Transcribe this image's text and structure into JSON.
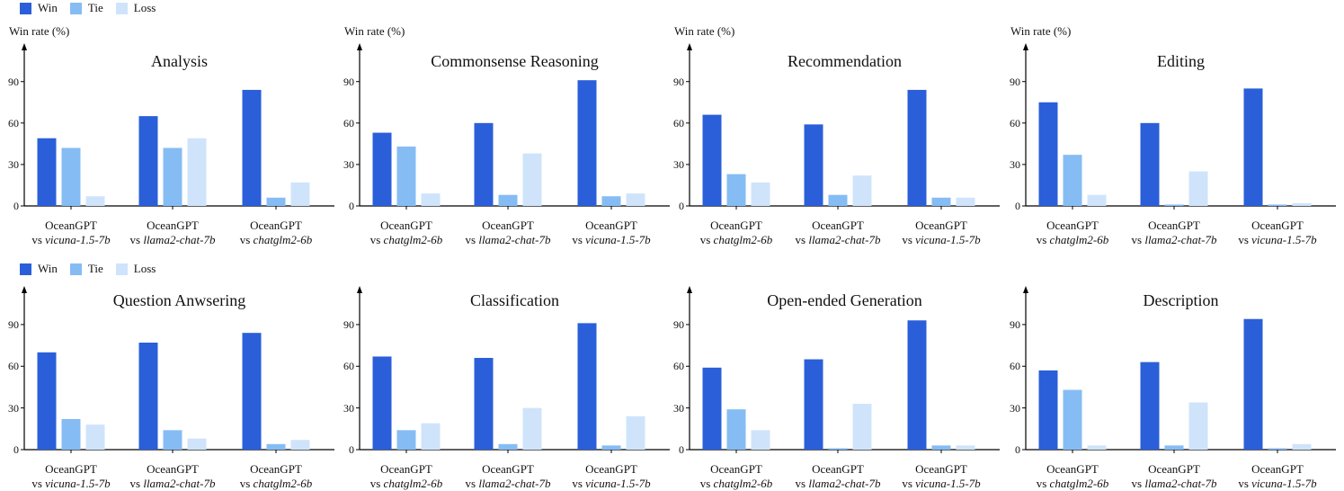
{
  "legend": [
    {
      "name": "Win",
      "color": "#2b5fd9"
    },
    {
      "name": "Tie",
      "color": "#86bcf4"
    },
    {
      "name": "Loss",
      "color": "#cfe4fb"
    }
  ],
  "ylabel": "Win rate (%)",
  "model_name": "OceanGPT",
  "vs_prefix": "vs",
  "chart_data": [
    {
      "type": "bar",
      "title": "Analysis",
      "ylabel": "Win rate (%)",
      "ylim": [
        0,
        110
      ],
      "yticks": [
        0,
        30,
        60,
        90
      ],
      "categories": [
        "vicuna-1.5-7b",
        "llama2-chat-7b",
        "chatglm2-6b"
      ],
      "series": [
        {
          "name": "Win",
          "values": [
            49,
            65,
            84
          ]
        },
        {
          "name": "Tie",
          "values": [
            42,
            42,
            6
          ]
        },
        {
          "name": "Loss",
          "values": [
            7,
            49,
            17
          ]
        }
      ]
    },
    {
      "type": "bar",
      "title": "Commonsense Reasoning",
      "ylabel": "Win rate (%)",
      "ylim": [
        0,
        110
      ],
      "yticks": [
        0,
        30,
        60,
        90
      ],
      "categories": [
        "chatglm2-6b",
        "llama2-chat-7b",
        "vicuna-1.5-7b"
      ],
      "series": [
        {
          "name": "Win",
          "values": [
            53,
            60,
            91
          ]
        },
        {
          "name": "Tie",
          "values": [
            43,
            8,
            7
          ]
        },
        {
          "name": "Loss",
          "values": [
            9,
            38,
            9
          ]
        }
      ]
    },
    {
      "type": "bar",
      "title": "Recommendation",
      "ylabel": "Win rate (%)",
      "ylim": [
        0,
        110
      ],
      "yticks": [
        0,
        30,
        60,
        90
      ],
      "categories": [
        "chatglm2-6b",
        "llama2-chat-7b",
        "vicuna-1.5-7b"
      ],
      "series": [
        {
          "name": "Win",
          "values": [
            66,
            59,
            84
          ]
        },
        {
          "name": "Tie",
          "values": [
            23,
            8,
            6
          ]
        },
        {
          "name": "Loss",
          "values": [
            17,
            22,
            6
          ]
        }
      ]
    },
    {
      "type": "bar",
      "title": "Editing",
      "ylabel": "Win rate (%)",
      "ylim": [
        0,
        110
      ],
      "yticks": [
        0,
        30,
        60,
        90
      ],
      "categories": [
        "chatglm2-6b",
        "llama2-chat-7b",
        "vicuna-1.5-7b"
      ],
      "series": [
        {
          "name": "Win",
          "values": [
            75,
            60,
            85
          ]
        },
        {
          "name": "Tie",
          "values": [
            37,
            1,
            1
          ]
        },
        {
          "name": "Loss",
          "values": [
            8,
            25,
            2
          ]
        }
      ]
    },
    {
      "type": "bar",
      "title": "Question Anwsering",
      "ylabel": "Win rate (%)",
      "ylim": [
        0,
        110
      ],
      "yticks": [
        0,
        30,
        60,
        90
      ],
      "categories": [
        "vicuna-1.5-7b",
        "llama2-chat-7b",
        "chatglm2-6b"
      ],
      "series": [
        {
          "name": "Win",
          "values": [
            70,
            77,
            84
          ]
        },
        {
          "name": "Tie",
          "values": [
            22,
            14,
            4
          ]
        },
        {
          "name": "Loss",
          "values": [
            18,
            8,
            7
          ]
        }
      ]
    },
    {
      "type": "bar",
      "title": "Classification",
      "ylabel": "Win rate (%)",
      "ylim": [
        0,
        110
      ],
      "yticks": [
        0,
        30,
        60,
        90
      ],
      "categories": [
        "chatglm2-6b",
        "llama2-chat-7b",
        "vicuna-1.5-7b"
      ],
      "series": [
        {
          "name": "Win",
          "values": [
            67,
            66,
            91
          ]
        },
        {
          "name": "Tie",
          "values": [
            14,
            4,
            3
          ]
        },
        {
          "name": "Loss",
          "values": [
            19,
            30,
            24
          ]
        }
      ]
    },
    {
      "type": "bar",
      "title": "Open-ended Generation",
      "ylabel": "Win rate (%)",
      "ylim": [
        0,
        110
      ],
      "yticks": [
        0,
        30,
        60,
        90
      ],
      "categories": [
        "chatglm2-6b",
        "llama2-chat-7b",
        "vicuna-1.5-7b"
      ],
      "series": [
        {
          "name": "Win",
          "values": [
            59,
            65,
            93
          ]
        },
        {
          "name": "Tie",
          "values": [
            29,
            1,
            3
          ]
        },
        {
          "name": "Loss",
          "values": [
            14,
            33,
            3
          ]
        }
      ]
    },
    {
      "type": "bar",
      "title": "Description",
      "ylabel": "Win rate (%)",
      "ylim": [
        0,
        110
      ],
      "yticks": [
        0,
        30,
        60,
        90
      ],
      "categories": [
        "chatglm2-6b",
        "llama2-chat-7b",
        "vicuna-1.5-7b"
      ],
      "series": [
        {
          "name": "Win",
          "values": [
            57,
            63,
            94
          ]
        },
        {
          "name": "Tie",
          "values": [
            43,
            3,
            1
          ]
        },
        {
          "name": "Loss",
          "values": [
            3,
            34,
            4
          ]
        }
      ]
    }
  ]
}
